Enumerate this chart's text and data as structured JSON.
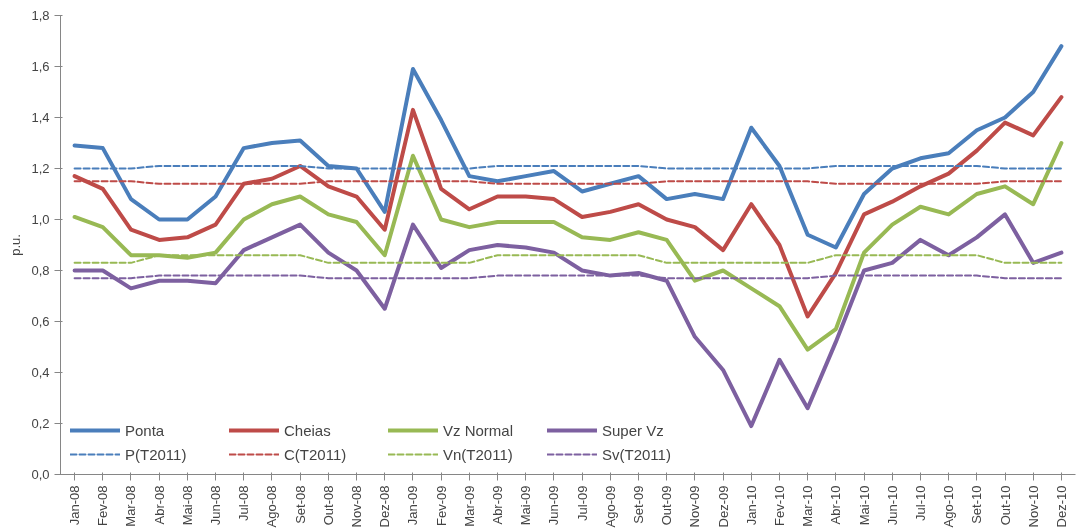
{
  "chart_data": {
    "type": "line",
    "ylabel": "p.u.",
    "categories": [
      "Jan-08",
      "Fev-08",
      "Mar-08",
      "Abr-08",
      "Mai-08",
      "Jun-08",
      "Jul-08",
      "Ago-08",
      "Set-08",
      "Out-08",
      "Nov-08",
      "Dez-08",
      "Jan-09",
      "Fev-09",
      "Mar-09",
      "Abr-09",
      "Mai-09",
      "Jun-09",
      "Jul-09",
      "Ago-09",
      "Set-09",
      "Out-09",
      "Nov-09",
      "Dez-09",
      "Jan-10",
      "Fev-10",
      "Mar-10",
      "Abr-10",
      "Mai-10",
      "Jun-10",
      "Jul-10",
      "Ago-10",
      "Set-10",
      "Out-10",
      "Nov-10",
      "Dez-10"
    ],
    "ylim": [
      0,
      1.8
    ],
    "yticks": [
      {
        "value": 0,
        "label": "0,0"
      },
      {
        "value": 0.2,
        "label": "0,2"
      },
      {
        "value": 0.4,
        "label": "0,4"
      },
      {
        "value": 0.6,
        "label": "0,6"
      },
      {
        "value": 0.8,
        "label": "0,8"
      },
      {
        "value": 1.0,
        "label": "1,0"
      },
      {
        "value": 1.2,
        "label": "1,2"
      },
      {
        "value": 1.4,
        "label": "1,4"
      },
      {
        "value": 1.6,
        "label": "1,6"
      },
      {
        "value": 1.8,
        "label": "1,8"
      }
    ],
    "grid": false,
    "legend": "bottom left",
    "line_style": "solid",
    "series": [
      {
        "name": "Ponta",
        "color": "#4a7ebb",
        "values": [
          1.29,
          1.28,
          1.08,
          1.0,
          1.0,
          1.09,
          1.28,
          1.3,
          1.31,
          1.21,
          1.2,
          1.03,
          1.59,
          1.39,
          1.17,
          1.15,
          1.17,
          1.19,
          1.11,
          1.14,
          1.17,
          1.08,
          1.1,
          1.08,
          1.36,
          1.21,
          0.94,
          0.89,
          1.1,
          1.2,
          1.24,
          1.26,
          1.35,
          1.4,
          1.5,
          1.68
        ]
      },
      {
        "name": "Cheias",
        "color": "#be4b48",
        "values": [
          1.17,
          1.12,
          0.96,
          0.92,
          0.93,
          0.98,
          1.14,
          1.16,
          1.21,
          1.13,
          1.09,
          0.96,
          1.43,
          1.12,
          1.04,
          1.09,
          1.09,
          1.08,
          1.01,
          1.03,
          1.06,
          1.0,
          0.97,
          0.88,
          1.06,
          0.9,
          0.62,
          0.79,
          1.02,
          1.07,
          1.13,
          1.18,
          1.27,
          1.38,
          1.33,
          1.48
        ]
      },
      {
        "name": "Vz Normal",
        "color": "#98b954",
        "values": [
          1.01,
          0.97,
          0.86,
          0.86,
          0.85,
          0.87,
          1.0,
          1.06,
          1.09,
          1.02,
          0.99,
          0.86,
          1.25,
          1.0,
          0.97,
          0.99,
          0.99,
          0.99,
          0.93,
          0.92,
          0.95,
          0.92,
          0.76,
          0.8,
          0.73,
          0.66,
          0.49,
          0.57,
          0.87,
          0.98,
          1.05,
          1.02,
          1.1,
          1.13,
          1.06,
          1.3
        ]
      },
      {
        "name": "Super Vz",
        "color": "#7d60a0",
        "values": [
          0.8,
          0.8,
          0.73,
          0.76,
          0.76,
          0.75,
          0.88,
          0.93,
          0.98,
          0.87,
          0.8,
          0.65,
          0.98,
          0.81,
          0.88,
          0.9,
          0.89,
          0.87,
          0.8,
          0.78,
          0.79,
          0.76,
          0.54,
          0.41,
          0.19,
          0.45,
          0.26,
          0.52,
          0.8,
          0.83,
          0.92,
          0.86,
          0.93,
          1.02,
          0.83,
          0.87
        ]
      },
      {
        "name": "P(T2011)",
        "color": "#4a7ebb",
        "line_style": "dashed",
        "values": [
          1.2,
          1.2,
          1.2,
          1.21,
          1.21,
          1.21,
          1.21,
          1.21,
          1.21,
          1.2,
          1.2,
          1.2,
          1.2,
          1.2,
          1.2,
          1.21,
          1.21,
          1.21,
          1.21,
          1.21,
          1.21,
          1.2,
          1.2,
          1.2,
          1.2,
          1.2,
          1.2,
          1.21,
          1.21,
          1.21,
          1.21,
          1.21,
          1.21,
          1.2,
          1.2,
          1.2
        ]
      },
      {
        "name": "C(T2011)",
        "color": "#be4b48",
        "line_style": "dashed",
        "values": [
          1.15,
          1.15,
          1.15,
          1.14,
          1.14,
          1.14,
          1.14,
          1.14,
          1.14,
          1.15,
          1.15,
          1.15,
          1.15,
          1.15,
          1.15,
          1.14,
          1.14,
          1.14,
          1.14,
          1.14,
          1.14,
          1.15,
          1.15,
          1.15,
          1.15,
          1.15,
          1.15,
          1.14,
          1.14,
          1.14,
          1.14,
          1.14,
          1.14,
          1.15,
          1.15,
          1.15
        ]
      },
      {
        "name": "Vn(T2011)",
        "color": "#98b954",
        "line_style": "dashed",
        "values": [
          0.83,
          0.83,
          0.83,
          0.86,
          0.86,
          0.86,
          0.86,
          0.86,
          0.86,
          0.83,
          0.83,
          0.83,
          0.83,
          0.83,
          0.83,
          0.86,
          0.86,
          0.86,
          0.86,
          0.86,
          0.86,
          0.83,
          0.83,
          0.83,
          0.83,
          0.83,
          0.83,
          0.86,
          0.86,
          0.86,
          0.86,
          0.86,
          0.86,
          0.83,
          0.83,
          0.83
        ]
      },
      {
        "name": "Sv(T2011)",
        "color": "#7d60a0",
        "line_style": "dashed",
        "values": [
          0.77,
          0.77,
          0.77,
          0.78,
          0.78,
          0.78,
          0.78,
          0.78,
          0.78,
          0.77,
          0.77,
          0.77,
          0.77,
          0.77,
          0.77,
          0.78,
          0.78,
          0.78,
          0.78,
          0.78,
          0.78,
          0.77,
          0.77,
          0.77,
          0.77,
          0.77,
          0.77,
          0.78,
          0.78,
          0.78,
          0.78,
          0.78,
          0.78,
          0.77,
          0.77,
          0.77
        ]
      }
    ]
  }
}
